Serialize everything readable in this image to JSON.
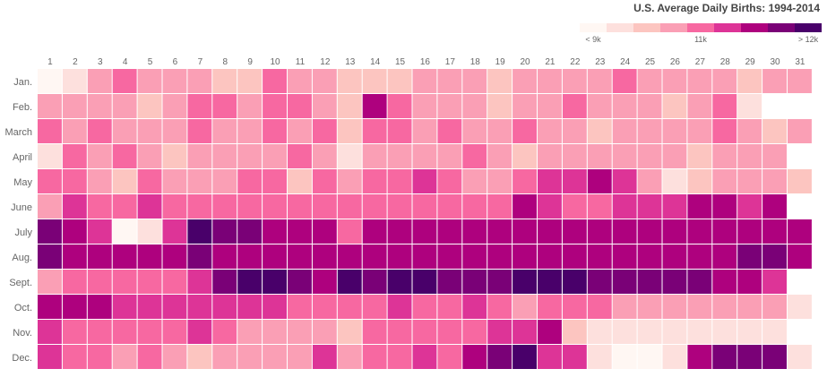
{
  "chart_data": {
    "type": "heatmap",
    "title": "U.S. Average Daily Births: 1994-2014",
    "x_labels": [
      "1",
      "2",
      "3",
      "4",
      "5",
      "6",
      "7",
      "8",
      "9",
      "10",
      "11",
      "12",
      "13",
      "14",
      "15",
      "16",
      "17",
      "18",
      "19",
      "20",
      "21",
      "22",
      "23",
      "24",
      "25",
      "26",
      "27",
      "28",
      "29",
      "30",
      "31"
    ],
    "y_labels": [
      "Jan.",
      "Feb.",
      "March",
      "April",
      "May",
      "June",
      "July",
      "Aug.",
      "Sept.",
      "Oct.",
      "Nov.",
      "Dec."
    ],
    "legend": {
      "colors": [
        "#fff7f3",
        "#fde0dd",
        "#fcc5c0",
        "#fa9fb5",
        "#f768a1",
        "#dd3497",
        "#ae017e",
        "#7a0177",
        "#49006a"
      ],
      "labels": [
        "< 9k",
        "11k",
        "> 12k"
      ],
      "position": "top-right"
    },
    "values": [
      [
        0,
        1,
        3,
        4,
        3,
        3,
        3,
        2,
        2,
        4,
        3,
        3,
        2,
        2,
        2,
        3,
        3,
        3,
        2,
        3,
        3,
        3,
        3,
        4,
        3,
        3,
        3,
        3,
        2,
        3,
        3
      ],
      [
        3,
        3,
        3,
        3,
        2,
        3,
        4,
        4,
        3,
        4,
        4,
        3,
        2,
        6,
        4,
        3,
        3,
        3,
        2,
        3,
        3,
        4,
        3,
        3,
        3,
        2,
        3,
        4,
        1,
        null,
        null
      ],
      [
        4,
        3,
        4,
        3,
        3,
        3,
        4,
        3,
        3,
        4,
        3,
        4,
        2,
        4,
        4,
        3,
        4,
        3,
        3,
        4,
        3,
        3,
        2,
        3,
        3,
        3,
        3,
        4,
        3,
        2,
        3
      ],
      [
        1,
        4,
        3,
        4,
        3,
        2,
        3,
        3,
        3,
        3,
        4,
        3,
        1,
        3,
        3,
        3,
        3,
        4,
        3,
        2,
        3,
        3,
        3,
        3,
        3,
        3,
        2,
        3,
        3,
        3,
        null
      ],
      [
        4,
        4,
        3,
        2,
        4,
        3,
        3,
        3,
        4,
        4,
        2,
        4,
        3,
        4,
        4,
        5,
        4,
        3,
        3,
        4,
        5,
        5,
        6,
        5,
        3,
        1,
        2,
        3,
        3,
        3,
        2
      ],
      [
        3,
        5,
        4,
        4,
        5,
        4,
        4,
        4,
        4,
        4,
        4,
        4,
        4,
        4,
        4,
        4,
        4,
        4,
        4,
        6,
        5,
        4,
        4,
        5,
        5,
        5,
        6,
        6,
        5,
        6,
        null
      ],
      [
        7,
        6,
        5,
        0,
        1,
        5,
        8,
        7,
        7,
        6,
        6,
        6,
        4,
        6,
        6,
        6,
        6,
        6,
        6,
        6,
        6,
        6,
        6,
        6,
        6,
        6,
        6,
        6,
        6,
        6,
        6
      ],
      [
        7,
        6,
        6,
        6,
        6,
        6,
        7,
        6,
        6,
        6,
        6,
        6,
        6,
        6,
        6,
        6,
        6,
        6,
        6,
        6,
        6,
        6,
        6,
        6,
        6,
        6,
        6,
        6,
        7,
        7,
        6
      ],
      [
        3,
        4,
        4,
        4,
        4,
        4,
        5,
        7,
        8,
        8,
        7,
        6,
        8,
        7,
        8,
        8,
        7,
        7,
        7,
        8,
        8,
        8,
        7,
        7,
        7,
        7,
        7,
        6,
        6,
        5,
        null
      ],
      [
        6,
        6,
        6,
        5,
        5,
        5,
        5,
        5,
        5,
        5,
        4,
        4,
        4,
        4,
        5,
        4,
        4,
        5,
        4,
        3,
        4,
        4,
        4,
        3,
        3,
        3,
        3,
        3,
        3,
        3,
        1
      ],
      [
        5,
        4,
        4,
        4,
        4,
        4,
        5,
        4,
        3,
        3,
        3,
        3,
        2,
        4,
        4,
        4,
        4,
        4,
        5,
        5,
        6,
        2,
        1,
        1,
        1,
        1,
        1,
        1,
        1,
        1,
        null
      ],
      [
        5,
        4,
        4,
        3,
        4,
        3,
        2,
        3,
        3,
        3,
        3,
        5,
        3,
        4,
        4,
        5,
        4,
        6,
        7,
        8,
        5,
        5,
        1,
        0,
        0,
        1,
        6,
        7,
        7,
        7,
        1
      ]
    ]
  }
}
